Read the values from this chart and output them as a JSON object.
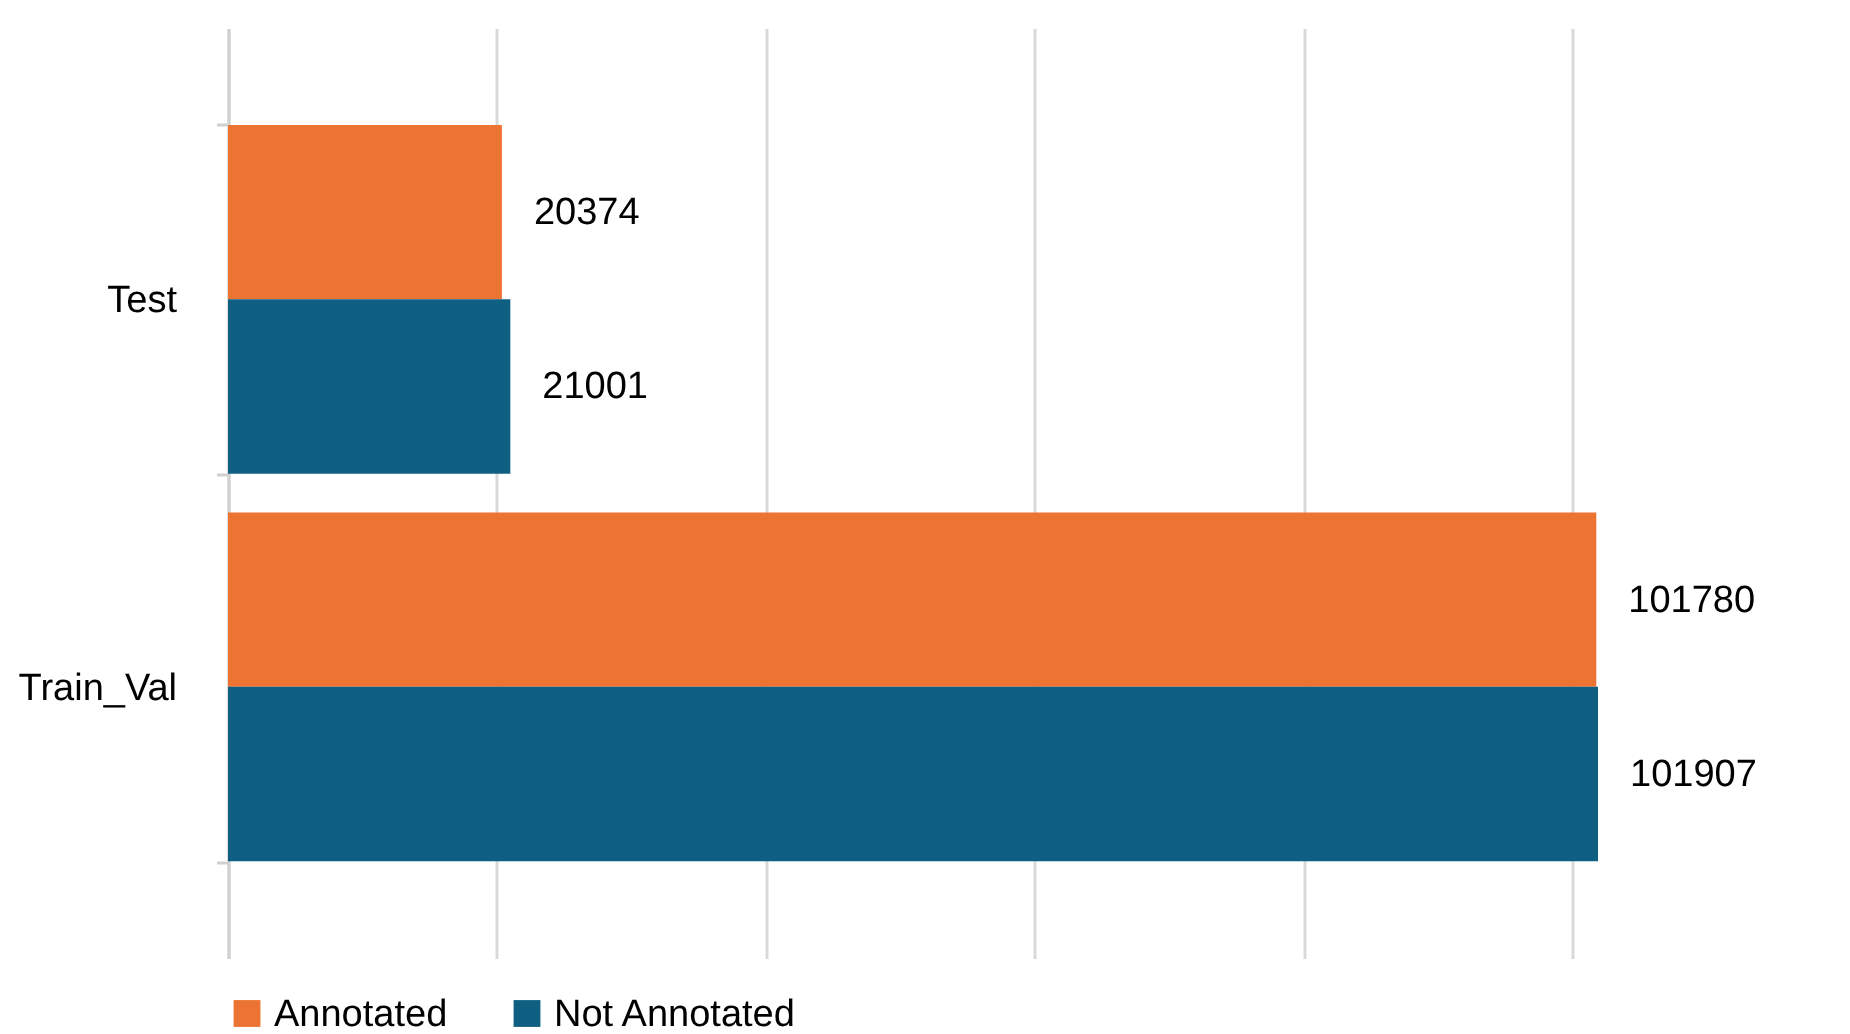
{
  "chart_data": {
    "type": "bar",
    "orientation": "horizontal",
    "categories": [
      "Test",
      "Train_Val"
    ],
    "series": [
      {
        "name": "Annotated",
        "color": "#ed7332",
        "values": [
          20374,
          101780
        ]
      },
      {
        "name": "Not Annotated",
        "color": "#0f5f82",
        "values": [
          21001,
          101907
        ]
      }
    ],
    "xticks": [
      {
        "value": 0,
        "label": null
      },
      {
        "value": 20000,
        "label": null
      },
      {
        "value": 40000,
        "label": null
      },
      {
        "value": 60000,
        "label": null
      },
      {
        "value": 80000,
        "label": null
      },
      {
        "value": 100000,
        "label": null
      }
    ],
    "tick_labels": "y",
    "grid": "x",
    "data_labels": true,
    "legend": "bottom"
  }
}
